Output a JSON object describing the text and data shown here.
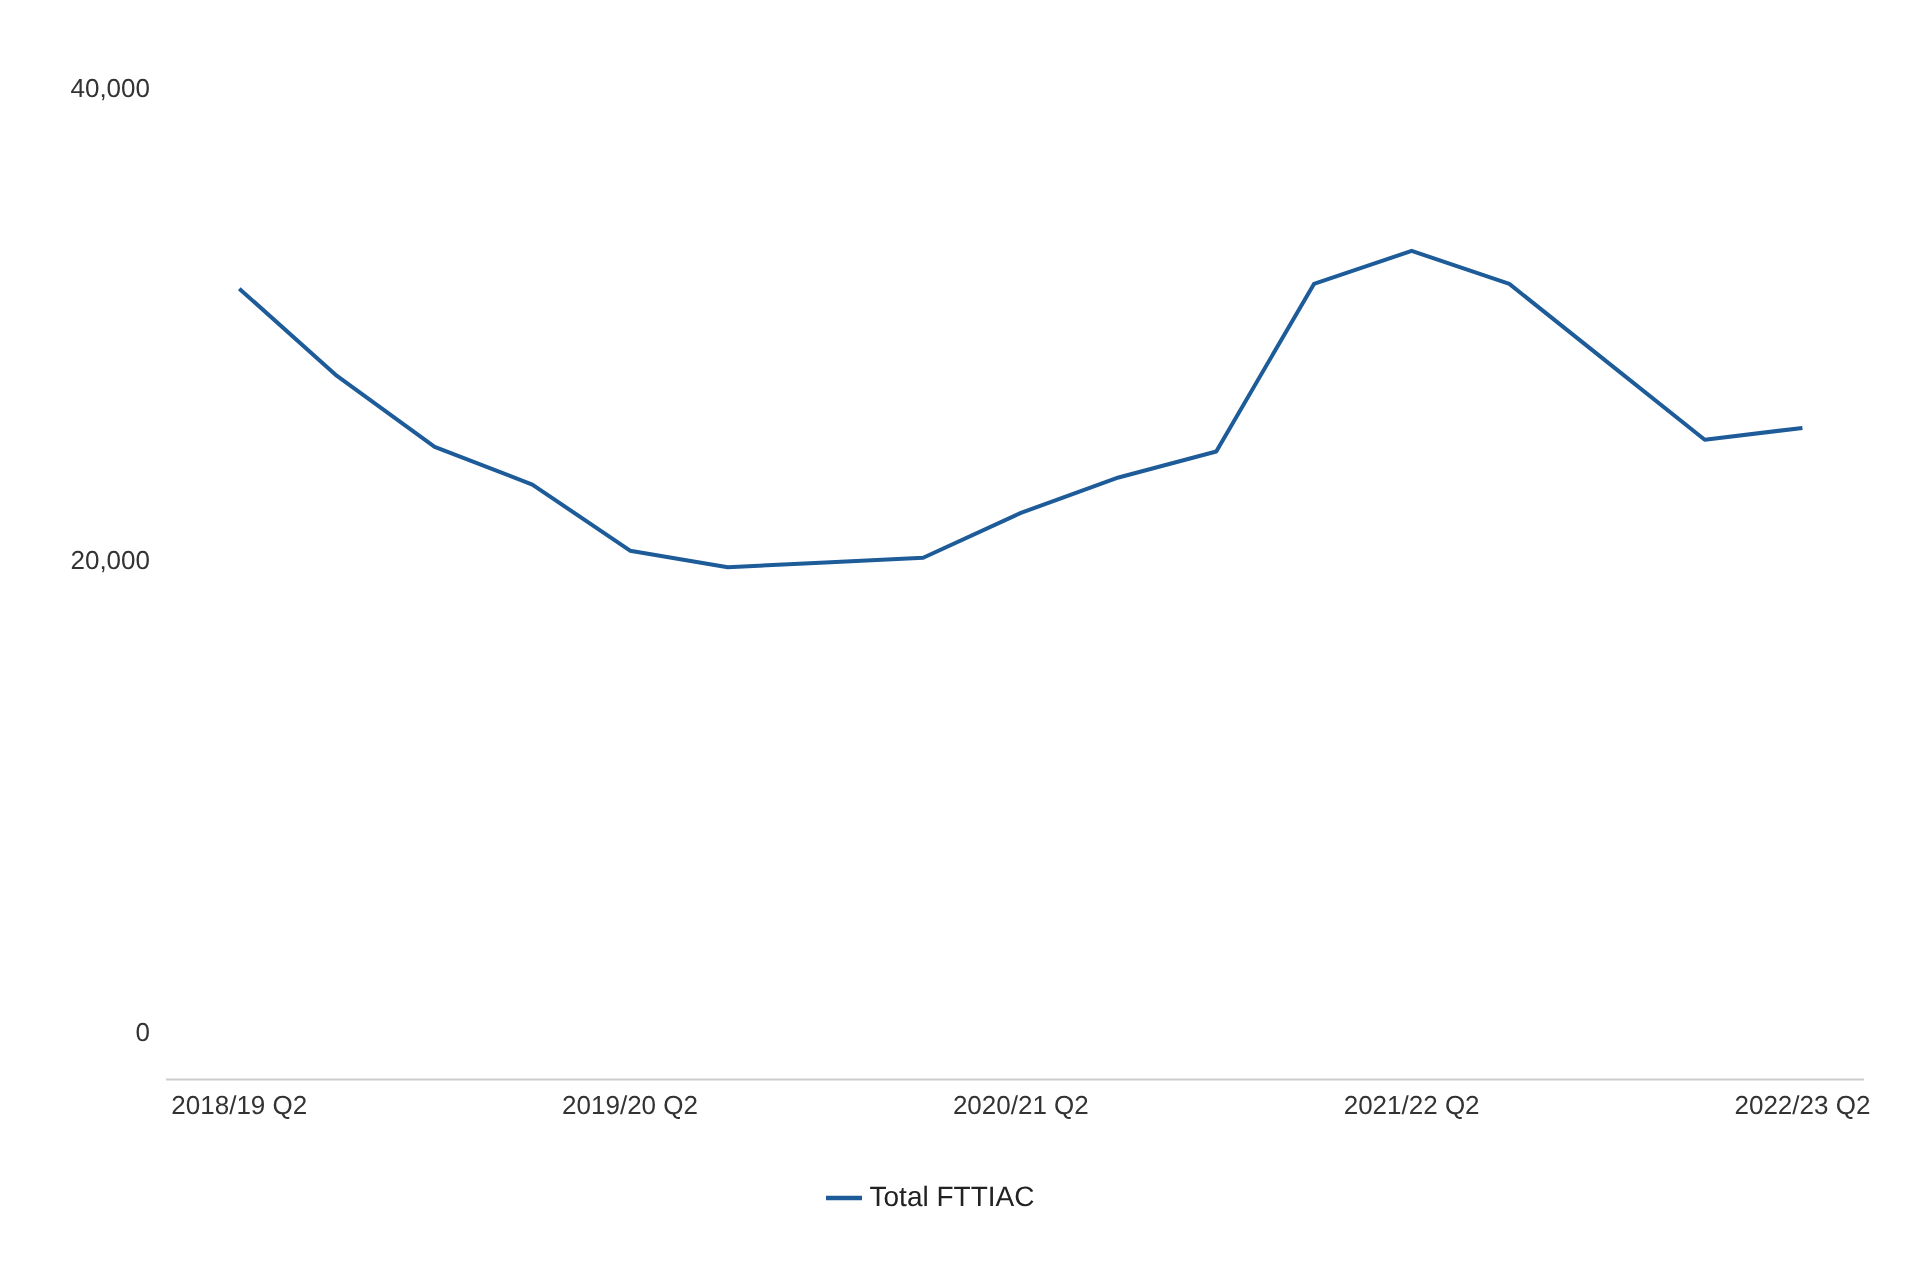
{
  "chart_data": {
    "type": "line",
    "categories": [
      "2018/19 Q2",
      null,
      null,
      null,
      "2019/20 Q2",
      null,
      null,
      null,
      "2020/21 Q2",
      null,
      null,
      null,
      "2021/22 Q2",
      null,
      null,
      null,
      "2022/23 Q2"
    ],
    "series": [
      {
        "name": "Total FTTIAC",
        "color": "#1d5c99",
        "values": [
          31500,
          27800,
          24800,
          23200,
          20400,
          19700,
          19900,
          20100,
          22000,
          23500,
          24600,
          31700,
          33100,
          31700,
          28400,
          25100,
          25600
        ]
      }
    ],
    "ylim": [
      -2000,
      40000
    ],
    "yticks": [
      0,
      {
        "value": 20000,
        "label": "20,000"
      },
      {
        "value": 40000,
        "label": "40,000"
      }
    ],
    "grid": false,
    "legend": "bottom",
    "marker": "none",
    "line_style": "solid"
  }
}
